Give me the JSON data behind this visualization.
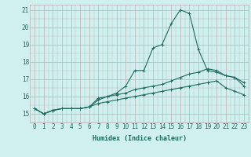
{
  "xlabel": "Humidex (Indice chaleur)",
  "background_color": "#cff0ee",
  "grid_color": "#c0b8be",
  "line_color": "#1e6b60",
  "xlim": [
    -0.5,
    23.5
  ],
  "ylim": [
    14.7,
    21.3
  ],
  "xticks": [
    0,
    1,
    2,
    3,
    4,
    5,
    6,
    7,
    8,
    9,
    10,
    11,
    12,
    13,
    14,
    15,
    16,
    17,
    18,
    19,
    20,
    21,
    22,
    23
  ],
  "yticks": [
    15,
    16,
    17,
    18,
    19,
    20,
    21
  ],
  "hours": [
    0,
    1,
    2,
    3,
    4,
    5,
    6,
    7,
    8,
    9,
    10,
    11,
    12,
    13,
    14,
    15,
    16,
    17,
    18,
    19,
    20,
    21,
    22,
    23
  ],
  "line1": [
    15.3,
    15.0,
    15.2,
    15.3,
    15.3,
    15.3,
    15.4,
    15.9,
    16.0,
    16.2,
    16.6,
    17.5,
    17.5,
    18.8,
    19.0,
    20.2,
    21.0,
    20.8,
    18.7,
    17.5,
    17.4,
    17.2,
    17.1,
    16.6
  ],
  "line2": [
    15.3,
    15.0,
    15.2,
    15.3,
    15.3,
    15.3,
    15.4,
    15.8,
    16.0,
    16.1,
    16.2,
    16.4,
    16.5,
    16.6,
    16.7,
    16.9,
    17.1,
    17.3,
    17.4,
    17.6,
    17.5,
    17.2,
    17.1,
    16.8
  ],
  "line3": [
    15.3,
    15.0,
    15.2,
    15.3,
    15.3,
    15.3,
    15.4,
    15.6,
    15.7,
    15.8,
    15.9,
    16.0,
    16.1,
    16.2,
    16.3,
    16.4,
    16.5,
    16.6,
    16.7,
    16.8,
    16.9,
    16.5,
    16.3,
    16.1
  ],
  "xlabel_fontsize": 6.0,
  "tick_fontsize": 5.5
}
